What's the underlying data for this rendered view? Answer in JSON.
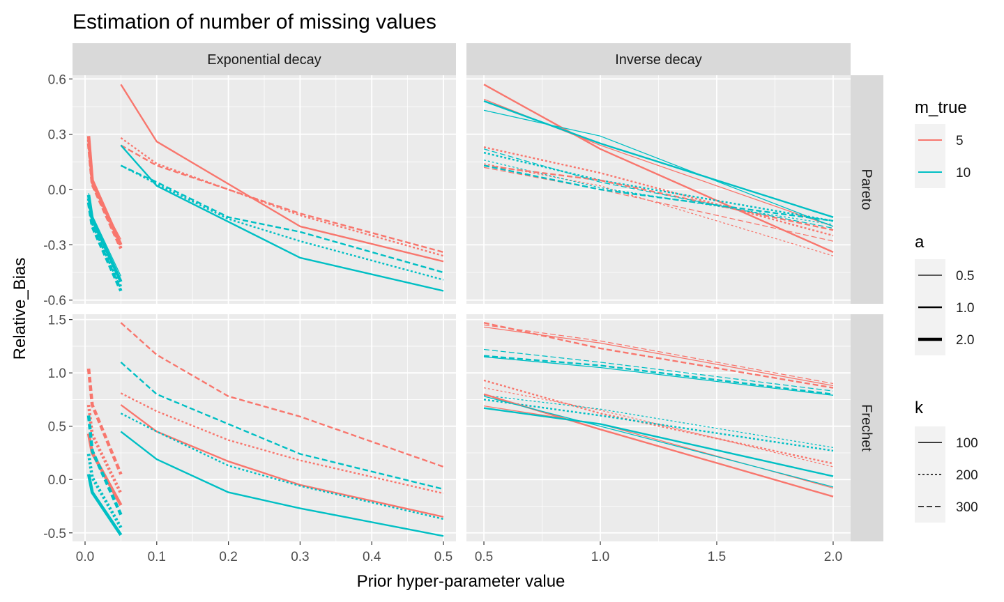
{
  "chart_data": {
    "type": "line",
    "title": "Estimation of number of missing values",
    "xlabel": "Prior hyper-parameter value",
    "ylabel": "Relative_Bias",
    "facet_columns": [
      "Exponential decay",
      "Inverse decay"
    ],
    "facet_rows": [
      "Pareto",
      "Frechet"
    ],
    "x_axes": {
      "Exponential decay": {
        "range": [
          -0.0175,
          0.5175
        ],
        "ticks": [
          0.0,
          0.1,
          0.2,
          0.3,
          0.4,
          0.5
        ],
        "tick_labels": [
          "0.0",
          "0.1",
          "0.2",
          "0.3",
          "0.4",
          "0.5"
        ]
      },
      "Inverse decay": {
        "range": [
          0.425,
          2.075
        ],
        "ticks": [
          0.5,
          1.0,
          1.5,
          2.0
        ],
        "tick_labels": [
          "0.5",
          "1.0",
          "1.5",
          "2.0"
        ]
      }
    },
    "y_axes": {
      "Pareto": {
        "range": [
          -0.62,
          0.62
        ],
        "ticks": [
          -0.6,
          -0.3,
          0.0,
          0.3,
          0.6
        ],
        "tick_labels": [
          "-0.6",
          "-0.3",
          "0.0",
          "0.3",
          "0.6"
        ]
      },
      "Frechet": {
        "range": [
          -0.58,
          1.55
        ],
        "ticks": [
          -0.5,
          0.0,
          0.5,
          1.0,
          1.5
        ],
        "tick_labels": [
          "-0.5",
          "0.0",
          "0.5",
          "1.0",
          "1.5"
        ]
      }
    },
    "grid": true,
    "legend_position": "right",
    "legends": [
      {
        "title": "m_true",
        "kind": "color",
        "entries": [
          {
            "label": "5",
            "color": "#F8766D"
          },
          {
            "label": "10",
            "color": "#00BFC4"
          }
        ]
      },
      {
        "title": "a",
        "kind": "linewidth",
        "entries": [
          {
            "label": "0.5",
            "width": 1.3
          },
          {
            "label": "1.0",
            "width": 2.4
          },
          {
            "label": "2.0",
            "width": 4.6
          }
        ]
      },
      {
        "title": "k",
        "kind": "linetype",
        "entries": [
          {
            "label": "100",
            "dash": ""
          },
          {
            "label": "200",
            "dash": "3,3"
          },
          {
            "label": "300",
            "dash": "8,4"
          }
        ]
      }
    ],
    "colors": {
      "5": "#F8766D",
      "10": "#00BFC4"
    },
    "series": [
      {
        "facet": "Exponential decay|Pareto",
        "m_true": "5",
        "a": "1.0",
        "k": "100",
        "x": [
          0.05,
          0.1,
          0.3,
          0.5
        ],
        "y": [
          0.57,
          0.26,
          -0.2,
          -0.39
        ]
      },
      {
        "facet": "Exponential decay|Pareto",
        "m_true": "5",
        "a": "1.0",
        "k": "200",
        "x": [
          0.05,
          0.1,
          0.2,
          0.3,
          0.5
        ],
        "y": [
          0.28,
          0.14,
          0.0,
          -0.14,
          -0.36
        ]
      },
      {
        "facet": "Exponential decay|Pareto",
        "m_true": "5",
        "a": "1.0",
        "k": "300",
        "x": [
          0.05,
          0.1,
          0.2,
          0.3,
          0.5
        ],
        "y": [
          0.24,
          0.13,
          0.0,
          -0.13,
          -0.34
        ]
      },
      {
        "facet": "Exponential decay|Pareto",
        "m_true": "10",
        "a": "1.0",
        "k": "100",
        "x": [
          0.05,
          0.1,
          0.3,
          0.5
        ],
        "y": [
          0.24,
          0.02,
          -0.37,
          -0.55
        ]
      },
      {
        "facet": "Exponential decay|Pareto",
        "m_true": "10",
        "a": "1.0",
        "k": "200",
        "x": [
          0.05,
          0.1,
          0.2,
          0.3,
          0.5
        ],
        "y": [
          0.13,
          0.03,
          -0.16,
          -0.28,
          -0.49
        ]
      },
      {
        "facet": "Exponential decay|Pareto",
        "m_true": "10",
        "a": "1.0",
        "k": "300",
        "x": [
          0.05,
          0.1,
          0.2,
          0.3,
          0.5
        ],
        "y": [
          0.13,
          0.04,
          -0.15,
          -0.23,
          -0.45
        ]
      },
      {
        "facet": "Exponential decay|Pareto",
        "m_true": "5",
        "a": "2.0",
        "k": "100",
        "x": [
          0.005,
          0.01,
          0.05
        ],
        "y": [
          0.29,
          0.05,
          -0.3
        ]
      },
      {
        "facet": "Exponential decay|Pareto",
        "m_true": "5",
        "a": "2.0",
        "k": "200",
        "x": [
          0.005,
          0.01,
          0.05
        ],
        "y": [
          0.27,
          0.04,
          -0.31
        ]
      },
      {
        "facet": "Exponential decay|Pareto",
        "m_true": "5",
        "a": "2.0",
        "k": "300",
        "x": [
          0.005,
          0.01,
          0.05
        ],
        "y": [
          0.25,
          0.03,
          -0.32
        ]
      },
      {
        "facet": "Exponential decay|Pareto",
        "m_true": "5",
        "a": "0.5",
        "k": "100",
        "x": [
          0.005,
          0.01,
          0.05
        ],
        "y": [
          0.2,
          0.02,
          -0.27
        ]
      },
      {
        "facet": "Exponential decay|Pareto",
        "m_true": "10",
        "a": "2.0",
        "k": "100",
        "x": [
          0.005,
          0.01,
          0.05
        ],
        "y": [
          -0.03,
          -0.16,
          -0.5
        ]
      },
      {
        "facet": "Exponential decay|Pareto",
        "m_true": "10",
        "a": "2.0",
        "k": "200",
        "x": [
          0.005,
          0.01,
          0.05
        ],
        "y": [
          -0.05,
          -0.18,
          -0.53
        ]
      },
      {
        "facet": "Exponential decay|Pareto",
        "m_true": "10",
        "a": "2.0",
        "k": "300",
        "x": [
          0.005,
          0.01,
          0.05
        ],
        "y": [
          -0.07,
          -0.2,
          -0.55
        ]
      },
      {
        "facet": "Exponential decay|Pareto",
        "m_true": "10",
        "a": "0.5",
        "k": "100",
        "x": [
          0.005,
          0.01,
          0.05
        ],
        "y": [
          -0.02,
          -0.14,
          -0.47
        ]
      },
      {
        "facet": "Exponential decay|Frechet",
        "m_true": "5",
        "a": "1.0",
        "k": "100",
        "x": [
          0.05,
          0.1,
          0.2,
          0.3,
          0.5
        ],
        "y": [
          0.7,
          0.45,
          0.17,
          -0.05,
          -0.35
        ]
      },
      {
        "facet": "Exponential decay|Frechet",
        "m_true": "5",
        "a": "1.0",
        "k": "200",
        "x": [
          0.05,
          0.1,
          0.2,
          0.3,
          0.5
        ],
        "y": [
          0.81,
          0.64,
          0.37,
          0.18,
          -0.13
        ]
      },
      {
        "facet": "Exponential decay|Frechet",
        "m_true": "5",
        "a": "1.0",
        "k": "300",
        "x": [
          0.05,
          0.1,
          0.2,
          0.3,
          0.5
        ],
        "y": [
          1.47,
          1.17,
          0.78,
          0.59,
          0.12
        ]
      },
      {
        "facet": "Exponential decay|Frechet",
        "m_true": "10",
        "a": "1.0",
        "k": "100",
        "x": [
          0.05,
          0.1,
          0.2,
          0.3,
          0.5
        ],
        "y": [
          0.45,
          0.19,
          -0.12,
          -0.27,
          -0.53
        ]
      },
      {
        "facet": "Exponential decay|Frechet",
        "m_true": "10",
        "a": "1.0",
        "k": "200",
        "x": [
          0.05,
          0.1,
          0.2,
          0.3,
          0.5
        ],
        "y": [
          0.62,
          0.45,
          0.13,
          -0.06,
          -0.37
        ]
      },
      {
        "facet": "Exponential decay|Frechet",
        "m_true": "10",
        "a": "1.0",
        "k": "300",
        "x": [
          0.05,
          0.1,
          0.2,
          0.3,
          0.5
        ],
        "y": [
          1.1,
          0.8,
          0.52,
          0.24,
          -0.09
        ]
      },
      {
        "facet": "Exponential decay|Frechet",
        "m_true": "5",
        "a": "2.0",
        "k": "300",
        "x": [
          0.005,
          0.01,
          0.05
        ],
        "y": [
          1.04,
          0.7,
          0.05
        ]
      },
      {
        "facet": "Exponential decay|Frechet",
        "m_true": "5",
        "a": "2.0",
        "k": "200",
        "x": [
          0.005,
          0.01,
          0.05
        ],
        "y": [
          0.7,
          0.42,
          -0.13
        ]
      },
      {
        "facet": "Exponential decay|Frechet",
        "m_true": "5",
        "a": "2.0",
        "k": "100",
        "x": [
          0.005,
          0.01,
          0.05
        ],
        "y": [
          0.43,
          0.25,
          -0.24
        ]
      },
      {
        "facet": "Exponential decay|Frechet",
        "m_true": "10",
        "a": "2.0",
        "k": "300",
        "x": [
          0.005,
          0.01,
          0.05
        ],
        "y": [
          0.6,
          0.27,
          -0.33
        ]
      },
      {
        "facet": "Exponential decay|Frechet",
        "m_true": "10",
        "a": "2.0",
        "k": "200",
        "x": [
          0.005,
          0.01,
          0.05
        ],
        "y": [
          0.24,
          0.02,
          -0.45
        ]
      },
      {
        "facet": "Exponential decay|Frechet",
        "m_true": "10",
        "a": "2.0",
        "k": "100",
        "x": [
          0.005,
          0.01,
          0.05
        ],
        "y": [
          0.05,
          -0.12,
          -0.52
        ]
      },
      {
        "facet": "Inverse decay|Pareto",
        "m_true": "5",
        "a": "1.0",
        "k": "100",
        "x": [
          0.5,
          1.0,
          2.0
        ],
        "y": [
          0.57,
          0.22,
          -0.34
        ]
      },
      {
        "facet": "Inverse decay|Pareto",
        "m_true": "5",
        "a": "0.5",
        "k": "100",
        "x": [
          0.5,
          1.0,
          2.0
        ],
        "y": [
          0.49,
          0.24,
          -0.2
        ]
      },
      {
        "facet": "Inverse decay|Pareto",
        "m_true": "10",
        "a": "1.0",
        "k": "100",
        "x": [
          0.5,
          1.0,
          2.0
        ],
        "y": [
          0.48,
          0.25,
          -0.15
        ]
      },
      {
        "facet": "Inverse decay|Pareto",
        "m_true": "10",
        "a": "0.5",
        "k": "100",
        "x": [
          0.5,
          1.0,
          2.0
        ],
        "y": [
          0.43,
          0.29,
          -0.2
        ]
      },
      {
        "facet": "Inverse decay|Pareto",
        "m_true": "5",
        "a": "1.0",
        "k": "200",
        "x": [
          0.5,
          1.0,
          2.0
        ],
        "y": [
          0.23,
          0.09,
          -0.25
        ]
      },
      {
        "facet": "Inverse decay|Pareto",
        "m_true": "5",
        "a": "0.5",
        "k": "200",
        "x": [
          0.5,
          1.0,
          2.0
        ],
        "y": [
          0.14,
          0.02,
          -0.36
        ]
      },
      {
        "facet": "Inverse decay|Pareto",
        "m_true": "10",
        "a": "1.0",
        "k": "200",
        "x": [
          0.5,
          1.0,
          2.0
        ],
        "y": [
          0.2,
          0.05,
          -0.17
        ]
      },
      {
        "facet": "Inverse decay|Pareto",
        "m_true": "10",
        "a": "0.5",
        "k": "200",
        "x": [
          0.5,
          1.0,
          2.0
        ],
        "y": [
          0.16,
          0.01,
          -0.19
        ]
      },
      {
        "facet": "Inverse decay|Pareto",
        "m_true": "5",
        "a": "1.0",
        "k": "300",
        "x": [
          0.5,
          1.0,
          2.0
        ],
        "y": [
          0.13,
          0.05,
          -0.22
        ]
      },
      {
        "facet": "Inverse decay|Pareto",
        "m_true": "5",
        "a": "0.5",
        "k": "300",
        "x": [
          0.5,
          1.0,
          2.0
        ],
        "y": [
          0.12,
          0.0,
          -0.28
        ]
      },
      {
        "facet": "Inverse decay|Pareto",
        "m_true": "10",
        "a": "1.0",
        "k": "300",
        "x": [
          0.5,
          1.0,
          2.0
        ],
        "y": [
          0.13,
          0.0,
          -0.17
        ]
      },
      {
        "facet": "Inverse decay|Pareto",
        "m_true": "10",
        "a": "0.5",
        "k": "300",
        "x": [
          0.5,
          1.0,
          2.0
        ],
        "y": [
          0.22,
          0.04,
          -0.21
        ]
      },
      {
        "facet": "Inverse decay|Frechet",
        "m_true": "5",
        "a": "1.0",
        "k": "300",
        "x": [
          0.5,
          1.0,
          2.0
        ],
        "y": [
          1.47,
          1.23,
          0.86
        ]
      },
      {
        "facet": "Inverse decay|Frechet",
        "m_true": "5",
        "a": "0.5",
        "k": "300",
        "x": [
          0.5,
          1.0,
          2.0
        ],
        "y": [
          1.45,
          1.3,
          0.9
        ]
      },
      {
        "facet": "Inverse decay|Frechet",
        "m_true": "5",
        "a": "0.5",
        "k": "100",
        "x": [
          0.5,
          1.0,
          2.0
        ],
        "y": [
          1.43,
          1.28,
          0.88
        ]
      },
      {
        "facet": "Inverse decay|Frechet",
        "m_true": "10",
        "a": "1.0",
        "k": "300",
        "x": [
          0.5,
          1.0,
          2.0
        ],
        "y": [
          1.16,
          1.07,
          0.8
        ]
      },
      {
        "facet": "Inverse decay|Frechet",
        "m_true": "10",
        "a": "0.5",
        "k": "300",
        "x": [
          0.5,
          1.0,
          2.0
        ],
        "y": [
          1.22,
          1.1,
          0.83
        ]
      },
      {
        "facet": "Inverse decay|Frechet",
        "m_true": "10",
        "a": "0.5",
        "k": "100",
        "x": [
          0.5,
          1.0,
          2.0
        ],
        "y": [
          1.15,
          1.05,
          0.79
        ]
      },
      {
        "facet": "Inverse decay|Frechet",
        "m_true": "5",
        "a": "1.0",
        "k": "200",
        "x": [
          0.5,
          1.0,
          2.0
        ],
        "y": [
          0.93,
          0.62,
          0.15
        ]
      },
      {
        "facet": "Inverse decay|Frechet",
        "m_true": "5",
        "a": "0.5",
        "k": "200",
        "x": [
          0.5,
          1.0,
          2.0
        ],
        "y": [
          0.86,
          0.65,
          0.12
        ]
      },
      {
        "facet": "Inverse decay|Frechet",
        "m_true": "10",
        "a": "1.0",
        "k": "200",
        "x": [
          0.5,
          1.0,
          2.0
        ],
        "y": [
          0.75,
          0.6,
          0.27
        ]
      },
      {
        "facet": "Inverse decay|Frechet",
        "m_true": "10",
        "a": "0.5",
        "k": "200",
        "x": [
          0.5,
          1.0,
          2.0
        ],
        "y": [
          0.79,
          0.66,
          0.3
        ]
      },
      {
        "facet": "Inverse decay|Frechet",
        "m_true": "5",
        "a": "1.0",
        "k": "100",
        "x": [
          0.5,
          1.0,
          2.0
        ],
        "y": [
          0.8,
          0.47,
          -0.16
        ]
      },
      {
        "facet": "Inverse decay|Frechet",
        "m_true": "5",
        "a": "0.5",
        "k": "100",
        "x": [
          0.5,
          1.0,
          2.0
        ],
        "y": [
          0.69,
          0.52,
          -0.08
        ]
      },
      {
        "facet": "Inverse decay|Frechet",
        "m_true": "10",
        "a": "1.0",
        "k": "100",
        "x": [
          0.5,
          1.0,
          2.0
        ],
        "y": [
          0.67,
          0.52,
          0.03
        ]
      },
      {
        "facet": "Inverse decay|Frechet",
        "m_true": "10",
        "a": "0.5",
        "k": "100",
        "x": [
          0.5,
          1.0,
          2.0
        ],
        "y": [
          0.78,
          0.5,
          -0.07
        ]
      }
    ]
  }
}
